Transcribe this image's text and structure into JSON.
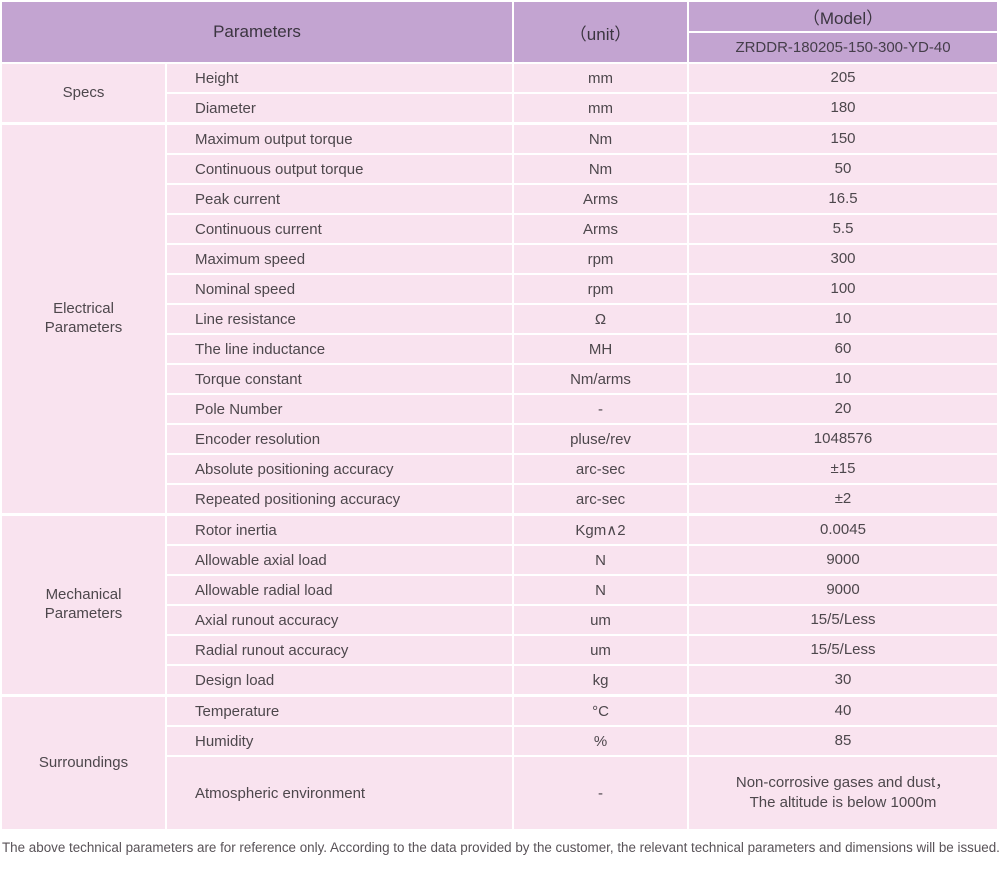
{
  "header": {
    "parameters_label": "Parameters",
    "unit_label": "（unit）",
    "model_label": "（Model）",
    "model_value": "ZRDDR-180205-150-300-YD-40"
  },
  "groups": [
    {
      "name": "Specs",
      "rows": [
        {
          "param": "Height",
          "unit": "mm",
          "value": "205"
        },
        {
          "param": "Diameter",
          "unit": "mm",
          "value": "180"
        }
      ]
    },
    {
      "name": "Electrical\nParameters",
      "rows": [
        {
          "param": "Maximum output torque",
          "unit": "Nm",
          "value": "150"
        },
        {
          "param": "Continuous output torque",
          "unit": "Nm",
          "value": "50"
        },
        {
          "param": "Peak current",
          "unit": "Arms",
          "value": "16.5"
        },
        {
          "param": "Continuous current",
          "unit": "Arms",
          "value": "5.5"
        },
        {
          "param": "Maximum speed",
          "unit": "rpm",
          "value": "300"
        },
        {
          "param": "Nominal speed",
          "unit": "rpm",
          "value": "100"
        },
        {
          "param": "Line resistance",
          "unit": "Ω",
          "value": "10"
        },
        {
          "param": "The line inductance",
          "unit": "MH",
          "value": "60"
        },
        {
          "param": "Torque constant",
          "unit": "Nm/arms",
          "value": "10"
        },
        {
          "param": "Pole Number",
          "unit": "-",
          "value": "20"
        },
        {
          "param": "Encoder resolution",
          "unit": "pluse/rev",
          "value": "1048576"
        },
        {
          "param": "Absolute positioning accuracy",
          "unit": "arc-sec",
          "value": "±15"
        },
        {
          "param": "Repeated positioning accuracy",
          "unit": "arc-sec",
          "value": "±2"
        }
      ]
    },
    {
      "name": "Mechanical\nParameters",
      "rows": [
        {
          "param": "Rotor inertia",
          "unit": "Kgm∧2",
          "value": "0.0045"
        },
        {
          "param": "Allowable axial load",
          "unit": "N",
          "value": "9000"
        },
        {
          "param": "Allowable radial load",
          "unit": "N",
          "value": "9000"
        },
        {
          "param": "Axial runout accuracy",
          "unit": "um",
          "value": "15/5/Less"
        },
        {
          "param": "Radial runout accuracy",
          "unit": "um",
          "value": "15/5/Less"
        },
        {
          "param": "Design load",
          "unit": "kg",
          "value": "30"
        }
      ]
    },
    {
      "name": "Surroundings",
      "rows": [
        {
          "param": "Temperature",
          "unit": "°C",
          "value": "40"
        },
        {
          "param": "Humidity",
          "unit": "%",
          "value": "85"
        },
        {
          "param": "Atmospheric environment",
          "unit": "-",
          "value": "Non-corrosive gases and dust，\nThe altitude is below 1000m",
          "tall": true
        }
      ]
    }
  ],
  "footer": {
    "note": "The above technical parameters are for reference only. According to the data provided by the customer, the relevant technical parameters and dimensions will be issued."
  },
  "colors": {
    "header_background": "#c3a4d1",
    "row_background": "#f9e3ef",
    "border": "#ffffff",
    "body_text": "#4d474c",
    "footer_text": "#585257"
  }
}
